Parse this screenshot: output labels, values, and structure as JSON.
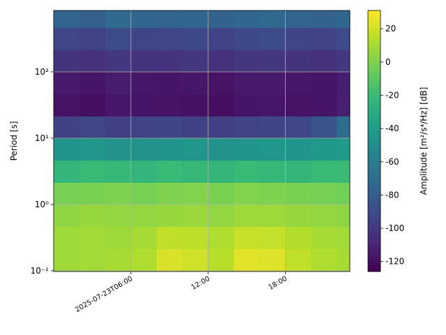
{
  "chart_data": {
    "type": "spectrogram",
    "ylabel": "Period [s]",
    "colorbar_label": "Amplitude [m²/s⁴/Hz] [dB]",
    "log_y": true,
    "grid": true,
    "xlim": [
      0,
      23
    ],
    "xticks": [
      {
        "value": 6,
        "label": "2025-07-23T06:00"
      },
      {
        "value": 12,
        "label": "12:00"
      },
      {
        "value": 18,
        "label": "18:00"
      }
    ],
    "ylim": [
      0.0976,
      843
    ],
    "yticks": [
      {
        "value": 0.1,
        "label": "10⁻¹"
      },
      {
        "value": 1,
        "label": "10⁰"
      },
      {
        "value": 10,
        "label": "10¹"
      },
      {
        "value": 100,
        "label": "10²"
      }
    ],
    "zlim": [
      -126,
      31
    ],
    "zticks": [
      -120,
      -100,
      -80,
      -60,
      -40,
      -20,
      0,
      20
    ],
    "colormap": [
      "#440154",
      "#482878",
      "#3e4989",
      "#31688e",
      "#26828e",
      "#1f9e89",
      "#35b779",
      "#6ece58",
      "#b5de2b",
      "#fde725"
    ],
    "x_edges": [
      0,
      2,
      4,
      6,
      8,
      10,
      12,
      14,
      16,
      18,
      20,
      22,
      23
    ],
    "y_edges": [
      0.0976,
      0.215,
      0.464,
      1,
      2.15,
      4.64,
      10,
      21.5,
      46.4,
      100,
      215,
      464,
      843
    ],
    "z": [
      [
        8,
        9,
        10,
        12,
        22,
        20,
        14,
        24,
        23,
        16,
        12,
        10
      ],
      [
        8,
        9,
        8,
        10,
        16,
        15,
        12,
        18,
        17,
        13,
        10,
        9
      ],
      [
        4,
        6,
        5,
        5,
        6,
        7,
        5,
        8,
        8,
        6,
        5,
        4
      ],
      [
        -2,
        -1,
        0,
        -2,
        0,
        1,
        -1,
        1,
        0,
        -1,
        -2,
        -3
      ],
      [
        -22,
        -20,
        -21,
        -23,
        -20,
        -21,
        -22,
        -20,
        -21,
        -22,
        -20,
        -19
      ],
      [
        -45,
        -44,
        -46,
        -46,
        -45,
        -44,
        -46,
        -45,
        -44,
        -45,
        -42,
        -40
      ],
      [
        -95,
        -92,
        -96,
        -94,
        -93,
        -95,
        -96,
        -94,
        -93,
        -92,
        -85,
        -70
      ],
      [
        -118,
        -120,
        -116,
        -117,
        -118,
        -119,
        -120,
        -117,
        -116,
        -118,
        -117,
        -112
      ],
      [
        -115,
        -117,
        -114,
        -116,
        -117,
        -116,
        -118,
        -115,
        -115,
        -116,
        -117,
        -113
      ],
      [
        -102,
        -104,
        -100,
        -102,
        -103,
        -101,
        -104,
        -101,
        -100,
        -103,
        -104,
        -100
      ],
      [
        -92,
        -94,
        -90,
        -93,
        -92,
        -91,
        -94,
        -91,
        -90,
        -93,
        -94,
        -90
      ],
      [
        -76,
        -78,
        -72,
        -75,
        -76,
        -74,
        -77,
        -74,
        -73,
        -76,
        -77,
        -74
      ]
    ]
  }
}
